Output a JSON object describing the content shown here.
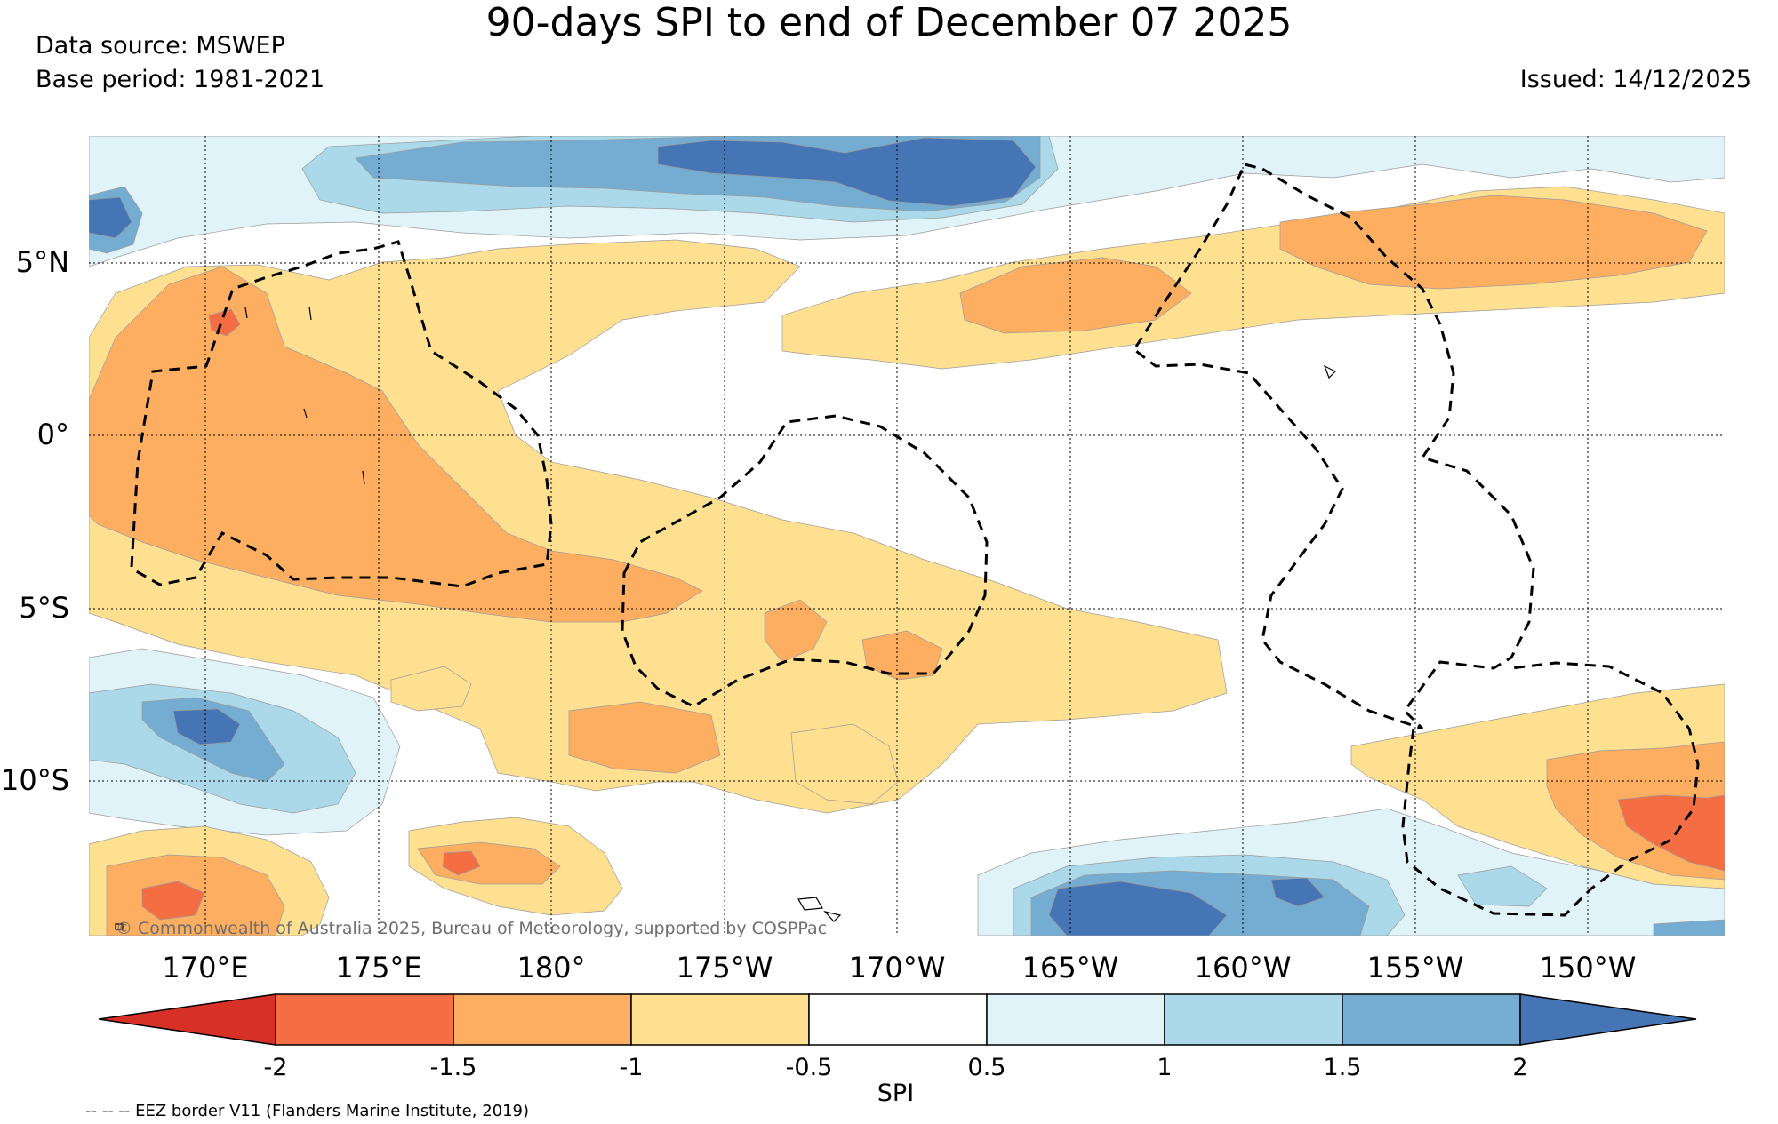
{
  "title": "90-days SPI to end of December 07 2025",
  "data_source": "Data source: MSWEP",
  "base_period": "Base period: 1981-2021",
  "issued": "Issued: 14/12/2025",
  "copyright": "© Commonwealth of Australia 2025, Bureau of Meteorology, supported by COSPPac",
  "footnote": "-- -- -- EEZ border V11 (Flanders Marine Institute, 2019)",
  "map": {
    "lat_ticks": [
      "5°N",
      "0°",
      "5°S",
      "10°S"
    ],
    "lon_ticks": [
      "170°E",
      "175°E",
      "180°",
      "175°W",
      "170°W",
      "165°W",
      "160°W",
      "155°W",
      "150°W"
    ],
    "lon_range": "166.7°E to 147.3°W",
    "lat_range": "8.6°N to 14.6°S"
  },
  "colorbar": {
    "label": "SPI",
    "ticks": [
      "-2",
      "-1.5",
      "-1",
      "-0.5",
      "0.5",
      "1",
      "1.5",
      "2"
    ],
    "colors": [
      "#d73027",
      "#f46d43",
      "#fdae61",
      "#fee090",
      "#ffffff",
      "#e0f3f8",
      "#abd9e9",
      "#74add1",
      "#4575b4"
    ],
    "classes": [
      "< -2",
      "-2 to -1.5",
      "-1.5 to -1",
      "-1 to -0.5",
      "-0.5 to 0.5",
      "0.5 to 1",
      "1 to 1.5",
      "1.5 to 2",
      "> 2"
    ]
  }
}
